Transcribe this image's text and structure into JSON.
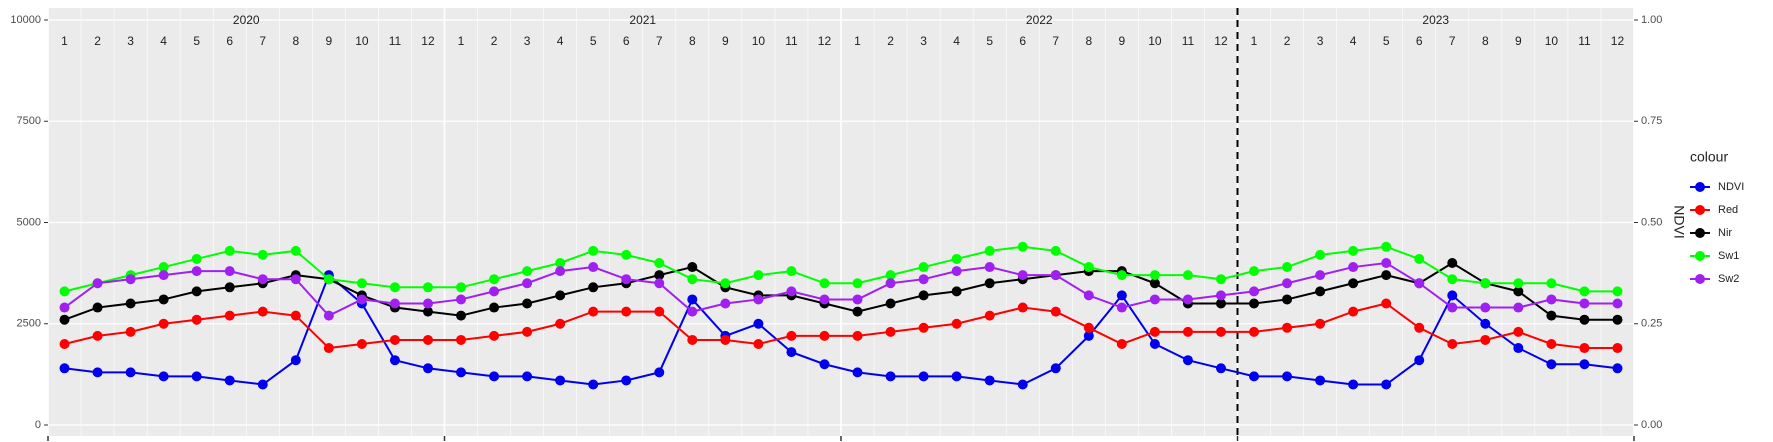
{
  "chart_data": {
    "type": "line",
    "x": [
      "2020-01",
      "2020-02",
      "2020-03",
      "2020-04",
      "2020-05",
      "2020-06",
      "2020-07",
      "2020-08",
      "2020-09",
      "2020-10",
      "2020-11",
      "2020-12",
      "2021-01",
      "2021-02",
      "2021-03",
      "2021-04",
      "2021-05",
      "2021-06",
      "2021-07",
      "2021-08",
      "2021-09",
      "2021-10",
      "2021-11",
      "2021-12",
      "2022-01",
      "2022-02",
      "2022-03",
      "2022-04",
      "2022-05",
      "2022-06",
      "2022-07",
      "2022-08",
      "2022-09",
      "2022-10",
      "2022-11",
      "2022-12",
      "2023-01",
      "2023-02",
      "2023-03",
      "2023-04",
      "2023-05",
      "2023-06",
      "2023-07",
      "2023-08",
      "2023-09",
      "2023-10",
      "2023-11",
      "2023-12"
    ],
    "year_labels": [
      "2020",
      "2021",
      "2022",
      "2023"
    ],
    "month_labels": [
      "1",
      "2",
      "3",
      "4",
      "5",
      "6",
      "7",
      "8",
      "9",
      "10",
      "11",
      "12"
    ],
    "vline": "2023-01",
    "y2_label": "NDVI",
    "legend_title": "colour",
    "legend_position": "right",
    "grid": true,
    "ylim": [
      0,
      10000
    ],
    "yticks": [
      0,
      2500,
      5000,
      7500,
      10000
    ],
    "y2lim": [
      0,
      1
    ],
    "y2ticks": [
      {
        "value": 0,
        "label": "0.00"
      },
      {
        "value": 0.25,
        "label": "0.25"
      },
      {
        "value": 0.5,
        "label": "0.50"
      },
      {
        "value": 0.75,
        "label": "0.75"
      },
      {
        "value": 1,
        "label": "1.00"
      }
    ],
    "series": [
      {
        "name": "NDVI",
        "color": "#0000ee",
        "axis": "y2",
        "values": [
          0.14,
          0.13,
          0.13,
          0.12,
          0.12,
          0.11,
          0.1,
          0.16,
          0.37,
          0.3,
          0.16,
          0.14,
          0.13,
          0.12,
          0.12,
          0.11,
          0.1,
          0.11,
          0.13,
          0.31,
          0.22,
          0.25,
          0.18,
          0.15,
          0.13,
          0.12,
          0.12,
          0.12,
          0.11,
          0.1,
          0.14,
          0.22,
          0.32,
          0.2,
          0.16,
          0.14,
          0.12,
          0.12,
          0.11,
          0.1,
          0.1,
          0.16,
          0.32,
          0.25,
          0.19,
          0.15,
          0.15,
          0.14
        ]
      },
      {
        "name": "Red",
        "color": "#ff0000",
        "values": [
          2000,
          2200,
          2300,
          2500,
          2600,
          2700,
          2800,
          2700,
          1900,
          2000,
          2100,
          2100,
          2100,
          2200,
          2300,
          2500,
          2800,
          2800,
          2800,
          2100,
          2100,
          2000,
          2200,
          2200,
          2200,
          2300,
          2400,
          2500,
          2700,
          2900,
          2800,
          2400,
          2000,
          2300,
          2300,
          2300,
          2300,
          2400,
          2500,
          2800,
          3000,
          2400,
          2000,
          2100,
          2300,
          2000,
          1900,
          1900
        ]
      },
      {
        "name": "Nir",
        "color": "#000000",
        "values": [
          2600,
          2900,
          3000,
          3100,
          3300,
          3400,
          3500,
          3700,
          3600,
          3200,
          2900,
          2800,
          2700,
          2900,
          3000,
          3200,
          3400,
          3500,
          3700,
          3900,
          3400,
          3200,
          3200,
          3000,
          2800,
          3000,
          3200,
          3300,
          3500,
          3600,
          3700,
          3800,
          3800,
          3500,
          3000,
          3000,
          3000,
          3100,
          3300,
          3500,
          3700,
          3500,
          4000,
          3500,
          3300,
          2700,
          2600,
          2600
        ]
      },
      {
        "name": "Sw1",
        "color": "#00ff00",
        "values": [
          3300,
          3500,
          3700,
          3900,
          4100,
          4300,
          4200,
          4300,
          3600,
          3500,
          3400,
          3400,
          3400,
          3600,
          3800,
          4000,
          4300,
          4200,
          4000,
          3600,
          3500,
          3700,
          3800,
          3500,
          3500,
          3700,
          3900,
          4100,
          4300,
          4400,
          4300,
          3900,
          3700,
          3700,
          3700,
          3600,
          3800,
          3900,
          4200,
          4300,
          4400,
          4100,
          3600,
          3500,
          3500,
          3500,
          3300,
          3300
        ]
      },
      {
        "name": "Sw2",
        "color": "#a020f0",
        "values": [
          2900,
          3500,
          3600,
          3700,
          3800,
          3800,
          3600,
          3600,
          2700,
          3100,
          3000,
          3000,
          3100,
          3300,
          3500,
          3800,
          3900,
          3600,
          3500,
          2800,
          3000,
          3100,
          3300,
          3100,
          3100,
          3500,
          3600,
          3800,
          3900,
          3700,
          3700,
          3200,
          2900,
          3100,
          3100,
          3200,
          3300,
          3500,
          3700,
          3900,
          4000,
          3500,
          2900,
          2900,
          2900,
          3100,
          3000,
          3000
        ]
      }
    ]
  }
}
